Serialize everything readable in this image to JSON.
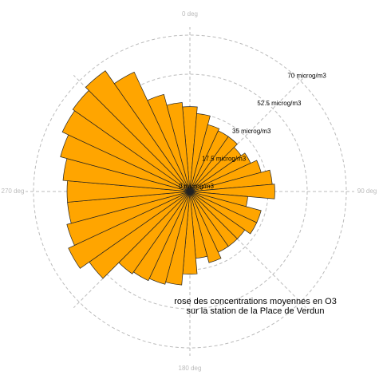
{
  "chart_data": {
    "type": "rose",
    "x": [
      0,
      10,
      20,
      30,
      40,
      50,
      60,
      70,
      80,
      90,
      100,
      110,
      120,
      130,
      140,
      150,
      160,
      170,
      180,
      190,
      200,
      210,
      220,
      230,
      240,
      250,
      260,
      270,
      280,
      290,
      300,
      310,
      320,
      330,
      340,
      350
    ],
    "values": [
      38,
      35,
      31,
      30,
      30,
      28,
      30,
      33,
      37,
      38,
      26,
      33,
      33,
      30,
      30,
      30,
      33,
      30,
      37,
      42,
      43,
      44,
      45,
      55,
      60,
      57,
      55,
      55,
      57,
      60,
      63,
      64,
      66,
      59,
      45,
      40
    ],
    "color": "#ffa500",
    "rlim": [
      0,
      70
    ],
    "rticks": [
      {
        "value": 0,
        "label": "0 microg/m3"
      },
      {
        "value": 17.5,
        "label": "17.5 microg/m3"
      },
      {
        "value": 35,
        "label": "35 microg/m3"
      },
      {
        "value": 52.5,
        "label": "52.5 microg/m3"
      },
      {
        "value": 70,
        "label": "70 microg/m3"
      }
    ],
    "thetaticks": [
      {
        "value": 0,
        "label": "0 deg"
      },
      {
        "value": 90,
        "label": "90 deg"
      },
      {
        "value": 180,
        "label": "180 deg"
      },
      {
        "value": 270,
        "label": "270 deg"
      }
    ],
    "annotations": [
      "rose des concentrations moyennes en O3",
      "sur la station de la Place de Verdun"
    ]
  }
}
